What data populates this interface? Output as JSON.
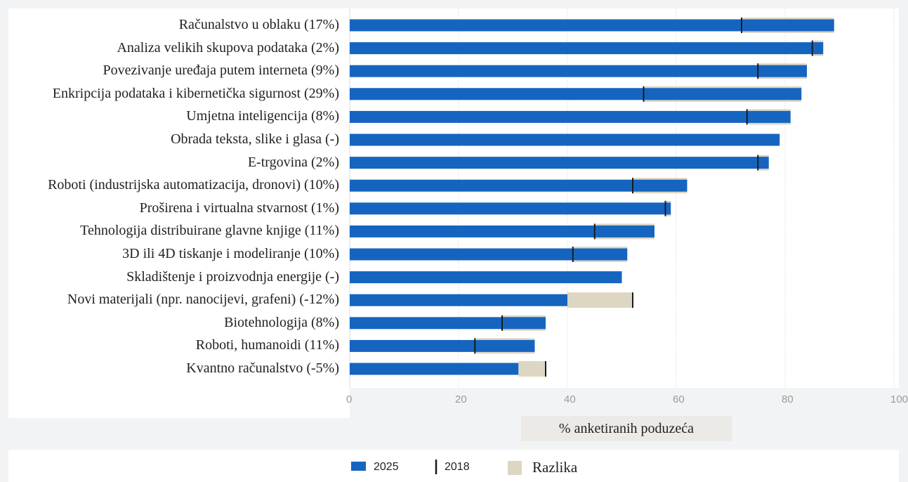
{
  "chart_data": {
    "type": "bar",
    "orientation": "horizontal",
    "xlabel": "% anketiranih poduzeća",
    "xlim": [
      0,
      100
    ],
    "xticks": [
      0,
      20,
      40,
      60,
      80,
      100
    ],
    "grid": true,
    "legend_position": "bottom-left",
    "legend": {
      "series_2025": "2025",
      "series_2018": "2018",
      "difference": "Razlika"
    },
    "colors": {
      "bar_2025": "#1565c0",
      "marker_2018": "#1a1a1a",
      "difference": "#ddd6c3"
    },
    "categories": [
      "Računalstvo u oblaku (17%)",
      "Analiza velikih skupova podataka (2%)",
      "Povezivanje uređaja putem interneta (9%)",
      "Enkripcija podataka i kibernetička sigurnost (29%)",
      "Umjetna inteligencija (8%)",
      "Obrada teksta, slike i glasa (-)",
      "E-trgovina (2%)",
      "Roboti (industrijska automatizacija, dronovi) (10%)",
      "Proširena i virtualna stvarnost (1%)",
      "Tehnologija distribuirane glavne knjige (11%)",
      "3D ili 4D tiskanje i modeliranje (10%)",
      "Skladištenje i proizvodnja energije (-)",
      "Novi materijali (npr. nanocijevi, grafeni) (-12%)",
      "Biotehnologija (8%)",
      "Roboti, humanoidi (11%)",
      "Kvantno računalstvo (-5%)"
    ],
    "series": [
      {
        "name": "2025",
        "values": [
          89,
          87,
          84,
          83,
          81,
          79,
          77,
          62,
          59,
          56,
          51,
          50,
          40,
          36,
          34,
          31
        ]
      },
      {
        "name": "2018",
        "values": [
          72,
          85,
          75,
          54,
          73,
          null,
          75,
          52,
          58,
          45,
          41,
          null,
          52,
          28,
          23,
          36
        ]
      }
    ]
  }
}
